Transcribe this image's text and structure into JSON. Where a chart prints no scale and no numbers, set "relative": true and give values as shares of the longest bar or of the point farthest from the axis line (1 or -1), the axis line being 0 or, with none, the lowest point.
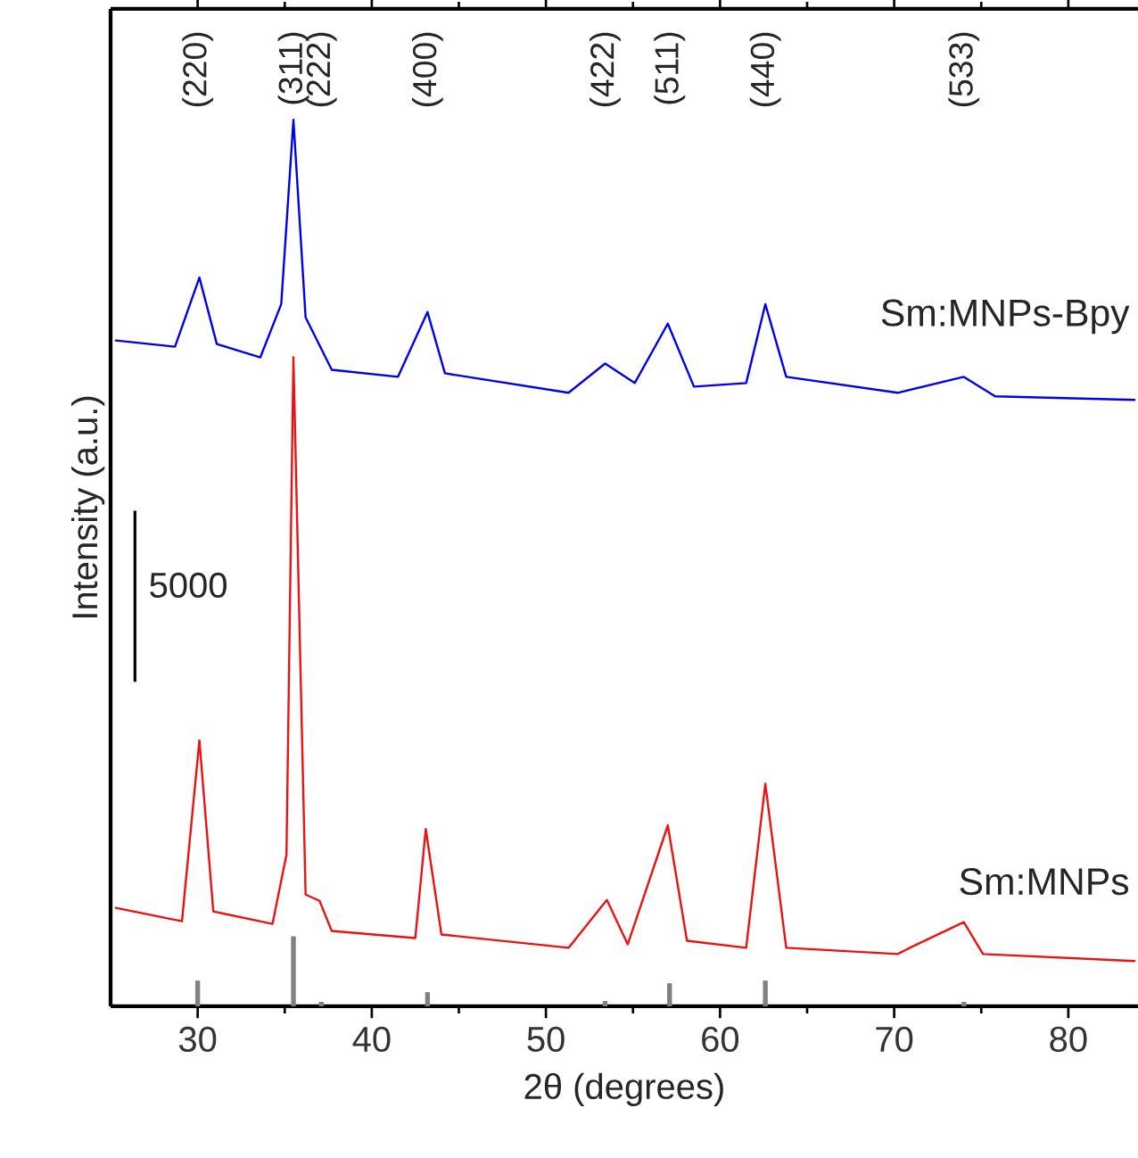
{
  "chart_data": {
    "type": "line",
    "xlabel": "2θ (degrees)",
    "ylabel": "Intensity (a.u.)",
    "relative": true,
    "xlim": [
      25,
      84
    ],
    "xticks": [
      30,
      40,
      50,
      60,
      70,
      80
    ],
    "grid": false,
    "legend": false,
    "marker": "none",
    "line_style": "solid",
    "series": [
      {
        "name": "Sm:MNPs-Bpy",
        "color": "#0000ee",
        "x": [
          25.3,
          28.7,
          30.1,
          31.1,
          33.6,
          34.8,
          35.5,
          36.2,
          37.7,
          41.5,
          43.2,
          44.2,
          51.3,
          53.4,
          55.1,
          57.0,
          58.5,
          61.5,
          62.6,
          63.8,
          70.2,
          74.0,
          75.8,
          83.8
        ],
        "values": [
          0.751,
          0.744,
          0.822,
          0.747,
          0.732,
          0.792,
          1.0,
          0.777,
          0.718,
          0.71,
          0.783,
          0.714,
          0.692,
          0.725,
          0.703,
          0.77,
          0.699,
          0.703,
          0.792,
          0.71,
          0.692,
          0.71,
          0.688,
          0.684
        ]
      },
      {
        "name": "Sm:MNPs",
        "color": "#ee1111",
        "x": [
          25.3,
          29.1,
          30.1,
          30.9,
          34.3,
          35.1,
          35.5,
          36.2,
          37.0,
          37.7,
          42.5,
          43.1,
          44.0,
          51.3,
          53.5,
          54.7,
          57.0,
          58.1,
          61.5,
          62.6,
          63.8,
          70.2,
          70.9,
          74.0,
          75.1,
          83.8
        ],
        "values": [
          0.111,
          0.096,
          0.3,
          0.107,
          0.093,
          0.171,
          0.732,
          0.126,
          0.119,
          0.085,
          0.077,
          0.2,
          0.081,
          0.066,
          0.12,
          0.07,
          0.204,
          0.074,
          0.066,
          0.251,
          0.066,
          0.059,
          0.066,
          0.095,
          0.059,
          0.051
        ]
      },
      {
        "type": "bar",
        "color": "#808080",
        "x": [
          30.0,
          35.5,
          37.1,
          43.2,
          53.4,
          57.1,
          62.6,
          74.0
        ],
        "values": [
          0.029,
          0.079,
          0.005,
          0.016,
          0.006,
          0.026,
          0.029,
          0.005
        ]
      }
    ],
    "annotations": [
      "(220)",
      "(311)",
      "(222)",
      "(400)",
      "(422)",
      "(511)",
      "(440)",
      "(533)",
      "5000"
    ]
  }
}
